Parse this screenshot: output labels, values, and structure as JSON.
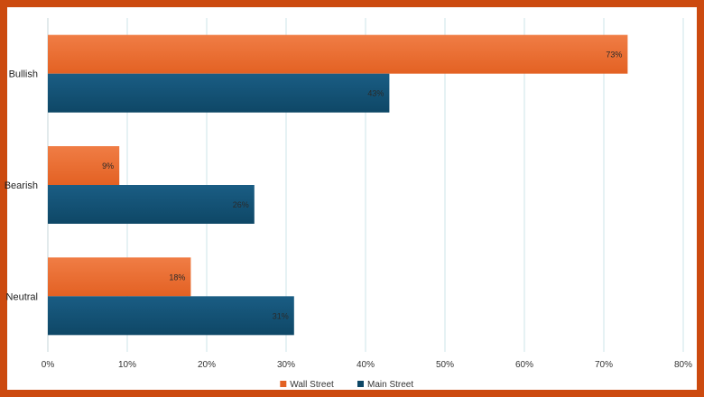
{
  "chart_data": {
    "type": "bar",
    "orientation": "horizontal",
    "categories": [
      "Bullish",
      "Bearish",
      "Neutral"
    ],
    "series": [
      {
        "name": "Wall Street",
        "values": [
          73,
          9,
          18
        ],
        "labels": [
          "73%",
          "9%",
          "18%"
        ],
        "color_top": "#f07d45",
        "color_bottom": "#e36123"
      },
      {
        "name": "Main Street",
        "values": [
          43,
          26,
          31
        ],
        "labels": [
          "43%",
          "26%",
          "31%"
        ],
        "color_top": "#1a5d84",
        "color_bottom": "#0e4766"
      }
    ],
    "x_ticks": [
      "0%",
      "10%",
      "20%",
      "30%",
      "40%",
      "50%",
      "60%",
      "70%",
      "80%"
    ],
    "xlim": [
      0,
      80
    ],
    "grid": "vertical",
    "grid_color": "#cde5ea",
    "legend_position": "bottom",
    "border_color": "#cc4a0f"
  }
}
